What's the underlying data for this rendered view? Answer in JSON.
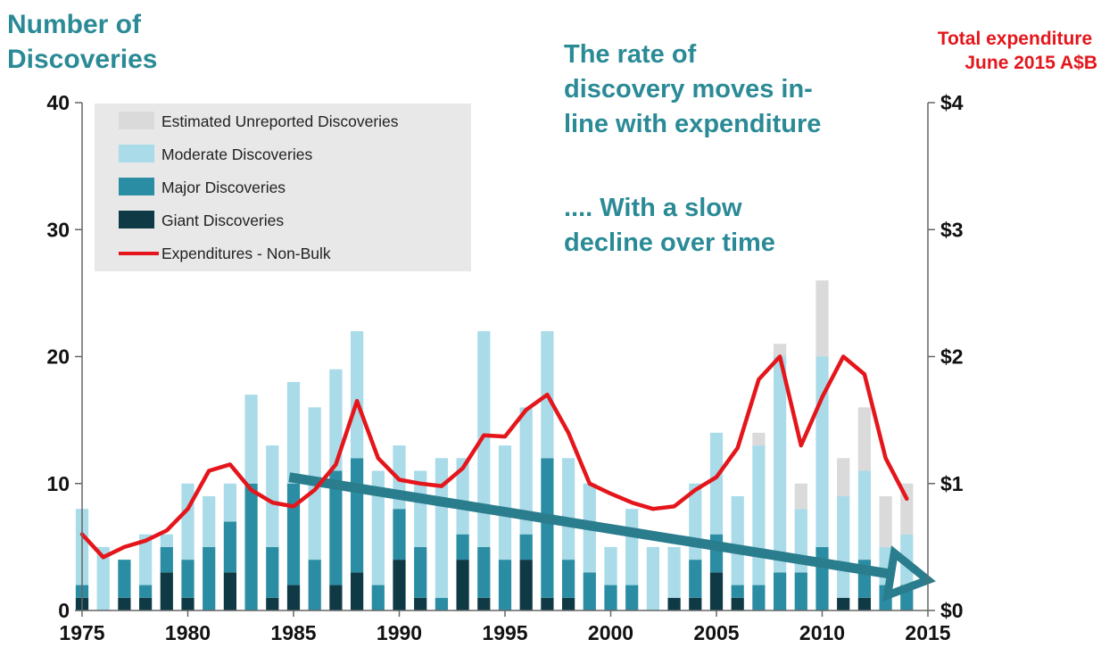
{
  "chart_data": {
    "type": "bar",
    "stacked": true,
    "ylabel": [
      "Number of",
      "Discoveries"
    ],
    "ylabel_right": [
      "Total expenditure",
      "June 2015 A$B"
    ],
    "annotations": [
      [
        "The rate of",
        "discovery moves in-",
        "line with expenditure"
      ],
      [
        ".... With a slow",
        "decline over time"
      ]
    ],
    "x": [
      1975,
      1976,
      1977,
      1978,
      1979,
      1980,
      1981,
      1982,
      1983,
      1984,
      1985,
      1986,
      1987,
      1988,
      1989,
      1990,
      1991,
      1992,
      1993,
      1994,
      1995,
      1996,
      1997,
      1998,
      1999,
      2000,
      2001,
      2002,
      2003,
      2004,
      2005,
      2006,
      2007,
      2008,
      2009,
      2010,
      2011,
      2012,
      2013,
      2014
    ],
    "xlim": [
      1975,
      2015
    ],
    "xticks": [
      1975,
      1980,
      1985,
      1990,
      1995,
      2000,
      2005,
      2010,
      2015
    ],
    "ylim": [
      0,
      40
    ],
    "yticks": [
      0,
      10,
      20,
      30,
      40
    ],
    "y2lim": [
      0,
      4
    ],
    "y2ticks": [
      "$0",
      "$1",
      "$2",
      "$3",
      "$4"
    ],
    "legend_position": "top-left",
    "series": [
      {
        "name": "Giant Discoveries",
        "color": "#0f3a45",
        "values": [
          1,
          0,
          1,
          1,
          3,
          1,
          0,
          3,
          0,
          1,
          2,
          0,
          2,
          3,
          0,
          4,
          1,
          0,
          4,
          1,
          0,
          4,
          1,
          1,
          0,
          0,
          0,
          0,
          1,
          1,
          3,
          1,
          0,
          0,
          0,
          0,
          1,
          1,
          0,
          0
        ]
      },
      {
        "name": "Major Discoveries",
        "color": "#2b8da3",
        "values": [
          1,
          0,
          3,
          1,
          2,
          3,
          5,
          4,
          10,
          4,
          8,
          4,
          9,
          9,
          2,
          4,
          4,
          1,
          2,
          4,
          4,
          2,
          11,
          3,
          3,
          2,
          2,
          0,
          0,
          3,
          3,
          1,
          2,
          3,
          3,
          5,
          0,
          3,
          2,
          2
        ]
      },
      {
        "name": "Moderate Discoveries",
        "color": "#a9dbe8",
        "values": [
          6,
          5,
          0,
          4,
          1,
          6,
          4,
          3,
          7,
          8,
          8,
          12,
          8,
          10,
          9,
          5,
          6,
          11,
          6,
          17,
          9,
          10,
          10,
          8,
          7,
          3,
          6,
          5,
          4,
          6,
          8,
          7,
          11,
          17,
          5,
          15,
          8,
          7,
          3,
          4
        ]
      },
      {
        "name": "Estimated Unreported Discoveries",
        "color": "#dadada",
        "values": [
          0,
          0,
          0,
          0,
          0,
          0,
          0,
          0,
          0,
          0,
          0,
          0,
          0,
          0,
          0,
          0,
          0,
          0,
          0,
          0,
          0,
          0,
          0,
          0,
          0,
          0,
          0,
          0,
          0,
          0,
          0,
          0,
          1,
          1,
          2,
          6,
          3,
          5,
          4,
          4
        ]
      }
    ],
    "line": {
      "name": "Expenditures - Non-Bulk",
      "color": "#e4161b",
      "axis": "right",
      "values": [
        0.6,
        0.42,
        0.5,
        0.55,
        0.63,
        0.8,
        1.1,
        1.15,
        0.95,
        0.85,
        0.82,
        0.95,
        1.15,
        1.65,
        1.2,
        1.03,
        1.0,
        0.98,
        1.12,
        1.38,
        1.37,
        1.58,
        1.7,
        1.4,
        1.0,
        0.92,
        0.85,
        0.8,
        0.82,
        0.95,
        1.05,
        1.28,
        1.82,
        2.0,
        1.3,
        1.68,
        2.0,
        1.86,
        1.2,
        0.88
      ]
    },
    "trend_arrow": {
      "from": [
        1984.8,
        10.5
      ],
      "to": [
        2015,
        2.4
      ],
      "color": "#2a7d8d"
    }
  }
}
